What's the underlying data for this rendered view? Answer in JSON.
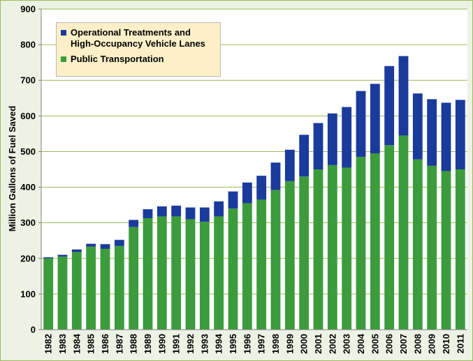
{
  "chart_data": {
    "type": "bar",
    "stacked": true,
    "title": "",
    "xlabel": "",
    "ylabel": "Million Gallons of Fuel Saved",
    "ylim": [
      0,
      900
    ],
    "yticks": [
      0,
      100,
      200,
      300,
      400,
      500,
      600,
      700,
      800,
      900
    ],
    "grid": true,
    "legend_position": "top-left",
    "categories": [
      "1982",
      "1983",
      "1984",
      "1985",
      "1986",
      "1987",
      "1988",
      "1989",
      "1990",
      "1991",
      "1992",
      "1993",
      "1994",
      "1995",
      "1996",
      "1997",
      "1998",
      "1999",
      "2000",
      "2001",
      "2002",
      "2003",
      "2004",
      "2005",
      "2006",
      "2007",
      "2008",
      "2009",
      "2010",
      "2011"
    ],
    "series": [
      {
        "name": "Public Transportation",
        "color": "#3c9c3c",
        "values": [
          200,
          205,
          218,
          233,
          227,
          235,
          288,
          313,
          318,
          318,
          310,
          303,
          318,
          340,
          355,
          365,
          392,
          417,
          430,
          450,
          462,
          455,
          485,
          495,
          518,
          545,
          478,
          460,
          445,
          450
        ]
      },
      {
        "name": "Operational Treatments and High-Occupancy Vehicle Lanes",
        "color": "#1a3a9c",
        "values": [
          3,
          5,
          7,
          8,
          13,
          17,
          20,
          25,
          28,
          30,
          33,
          40,
          42,
          48,
          58,
          67,
          77,
          88,
          117,
          130,
          145,
          170,
          185,
          195,
          222,
          223,
          185,
          187,
          192,
          195
        ]
      }
    ],
    "legend": [
      {
        "label_lines": [
          "Operational Treatments and",
          "High-Occupancy Vehicle Lanes"
        ],
        "color": "#1a3a9c"
      },
      {
        "label_lines": [
          "Public Transportation"
        ],
        "color": "#3c9c3c"
      }
    ]
  }
}
